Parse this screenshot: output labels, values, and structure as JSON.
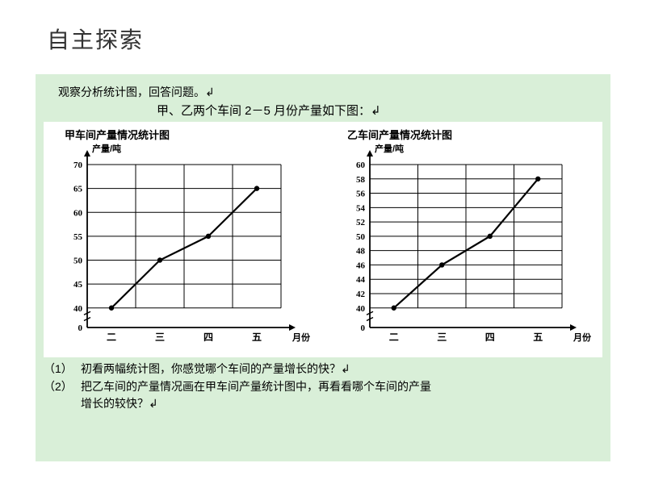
{
  "title": "自主探索",
  "instruction": "观察分析统计图，回答问题。",
  "subtitle": "甲、乙两个车间 2－5 月份产量如下图：",
  "chart_a": {
    "title": "甲车间产量情况统计图",
    "type": "line",
    "y_label_top": "产量/吨",
    "x_label_right": "月份",
    "x_categories": [
      "二",
      "三",
      "四",
      "五"
    ],
    "y_ticks": [
      0,
      40,
      45,
      50,
      55,
      60,
      65,
      70
    ],
    "values": [
      40,
      50,
      55,
      65
    ],
    "line_color": "#000000",
    "marker_color": "#000000",
    "grid_color": "#000000",
    "background_color": "#ffffff",
    "font_size": 11
  },
  "chart_b": {
    "title": "乙车间产量情况统计图",
    "type": "line",
    "y_label_top": "产量/吨",
    "x_label_right": "月份",
    "x_categories": [
      "二",
      "三",
      "四",
      "五"
    ],
    "y_ticks": [
      0,
      40,
      42,
      44,
      46,
      48,
      50,
      52,
      54,
      56,
      58,
      60
    ],
    "values": [
      40,
      46,
      50,
      58
    ],
    "line_color": "#000000",
    "marker_color": "#000000",
    "grid_color": "#000000",
    "background_color": "#ffffff",
    "font_size": 11
  },
  "questions": {
    "q1_num": "（1）",
    "q1_text": "初看两幅统计图，你感觉哪个车间的产量增长的快？",
    "q2_num": "（2）",
    "q2_text": "把乙车间的产量情况画在甲车间产量统计图中，再看看哪个车间的产量",
    "q2_cont": "增长的较快？"
  },
  "arrow_suffix": "↲"
}
